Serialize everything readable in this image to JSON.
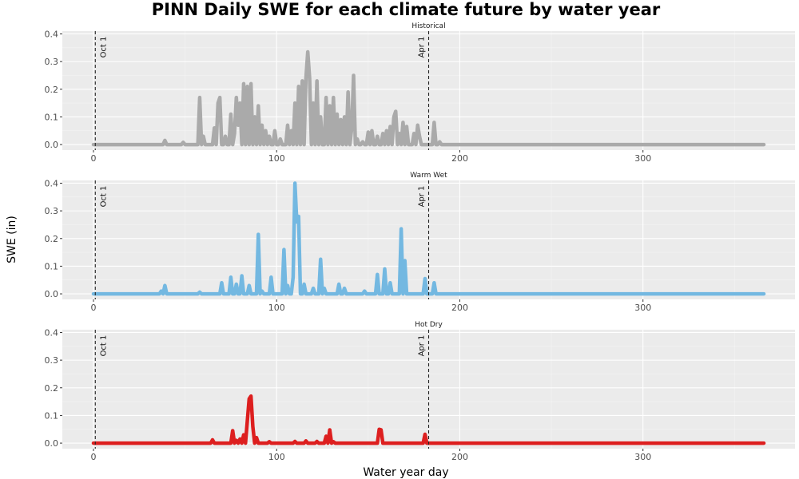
{
  "chart_data": {
    "type": "line",
    "title": "PINN Daily SWE for each climate future by water year",
    "xlabel": "Water year day",
    "ylabel": "SWE (in)",
    "xlim": [
      -17,
      383
    ],
    "ylim": [
      -0.02,
      0.41
    ],
    "x_ticks": [
      0,
      100,
      200,
      300
    ],
    "y_ticks": [
      0.0,
      0.1,
      0.2,
      0.3,
      0.4
    ],
    "x_tick_labels": [
      "0",
      "100",
      "200",
      "300"
    ],
    "y_tick_labels": [
      "0.0",
      "0.1",
      "0.2",
      "0.3",
      "0.4"
    ],
    "grid": true,
    "panel_background": "#ebebeb",
    "reference_lines": [
      {
        "x": 1,
        "label": "Oct 1",
        "style": "dashed",
        "color": "#222222"
      },
      {
        "x": 183,
        "label": "Apr 1",
        "style": "dashed",
        "color": "#222222"
      }
    ],
    "panels": [
      {
        "strip": "Historical",
        "color": "#aaaaaa",
        "x_end": 366,
        "spikes": [
          [
            39,
            0.015
          ],
          [
            49,
            0.008
          ],
          [
            58,
            0.17
          ],
          [
            60,
            0.03
          ],
          [
            66,
            0.06
          ],
          [
            68,
            0.15
          ],
          [
            69,
            0.17
          ],
          [
            72,
            0.03
          ],
          [
            75,
            0.11
          ],
          [
            77,
            0.04
          ],
          [
            78,
            0.17
          ],
          [
            79,
            0.07
          ],
          [
            80,
            0.15
          ],
          [
            82,
            0.22
          ],
          [
            84,
            0.21
          ],
          [
            86,
            0.22
          ],
          [
            88,
            0.1
          ],
          [
            90,
            0.14
          ],
          [
            92,
            0.07
          ],
          [
            94,
            0.05
          ],
          [
            96,
            0.03
          ],
          [
            99,
            0.05
          ],
          [
            102,
            0.02
          ],
          [
            106,
            0.07
          ],
          [
            108,
            0.05
          ],
          [
            110,
            0.15
          ],
          [
            112,
            0.21
          ],
          [
            114,
            0.23
          ],
          [
            116,
            0.24
          ],
          [
            117,
            0.335
          ],
          [
            118,
            0.24
          ],
          [
            120,
            0.15
          ],
          [
            122,
            0.23
          ],
          [
            124,
            0.1
          ],
          [
            127,
            0.17
          ],
          [
            129,
            0.14
          ],
          [
            131,
            0.17
          ],
          [
            133,
            0.11
          ],
          [
            135,
            0.09
          ],
          [
            137,
            0.1
          ],
          [
            139,
            0.19
          ],
          [
            141,
            0.06
          ],
          [
            142,
            0.25
          ],
          [
            144,
            0.02
          ],
          [
            147,
            0.01
          ],
          [
            150,
            0.045
          ],
          [
            152,
            0.05
          ],
          [
            155,
            0.03
          ],
          [
            158,
            0.04
          ],
          [
            160,
            0.05
          ],
          [
            162,
            0.065
          ],
          [
            164,
            0.1
          ],
          [
            165,
            0.12
          ],
          [
            167,
            0.04
          ],
          [
            169,
            0.08
          ],
          [
            171,
            0.065
          ],
          [
            175,
            0.04
          ],
          [
            177,
            0.07
          ],
          [
            178,
            0.03
          ],
          [
            186,
            0.08
          ],
          [
            189,
            0.01
          ]
        ]
      },
      {
        "strip": "Warm Wet",
        "color": "#73b8e1",
        "x_end": 366,
        "spikes": [
          [
            37,
            0.01
          ],
          [
            39,
            0.03
          ],
          [
            58,
            0.006
          ],
          [
            70,
            0.04
          ],
          [
            75,
            0.06
          ],
          [
            78,
            0.035
          ],
          [
            81,
            0.065
          ],
          [
            85,
            0.03
          ],
          [
            90,
            0.215
          ],
          [
            92,
            0.01
          ],
          [
            97,
            0.06
          ],
          [
            104,
            0.16
          ],
          [
            106,
            0.03
          ],
          [
            109,
            0.06
          ],
          [
            110,
            0.4
          ],
          [
            111,
            0.26
          ],
          [
            112,
            0.28
          ],
          [
            115,
            0.035
          ],
          [
            120,
            0.02
          ],
          [
            124,
            0.125
          ],
          [
            126,
            0.02
          ],
          [
            134,
            0.035
          ],
          [
            137,
            0.02
          ],
          [
            148,
            0.01
          ],
          [
            155,
            0.07
          ],
          [
            159,
            0.09
          ],
          [
            162,
            0.04
          ],
          [
            168,
            0.235
          ],
          [
            170,
            0.12
          ],
          [
            181,
            0.055
          ],
          [
            186,
            0.04
          ]
        ]
      },
      {
        "strip": "Hot Dry",
        "color": "#dd1f1f",
        "x_end": 366,
        "spikes": [
          [
            65,
            0.012
          ],
          [
            76,
            0.045
          ],
          [
            78,
            0.01
          ],
          [
            80,
            0.015
          ],
          [
            82,
            0.03
          ],
          [
            84,
            0.08
          ],
          [
            85,
            0.16
          ],
          [
            86,
            0.17
          ],
          [
            87,
            0.06
          ],
          [
            89,
            0.02
          ],
          [
            96,
            0.005
          ],
          [
            110,
            0.006
          ],
          [
            116,
            0.008
          ],
          [
            122,
            0.006
          ],
          [
            127,
            0.025
          ],
          [
            129,
            0.048
          ],
          [
            131,
            0.005
          ],
          [
            156,
            0.05
          ],
          [
            157,
            0.048
          ],
          [
            181,
            0.032
          ]
        ]
      }
    ]
  }
}
